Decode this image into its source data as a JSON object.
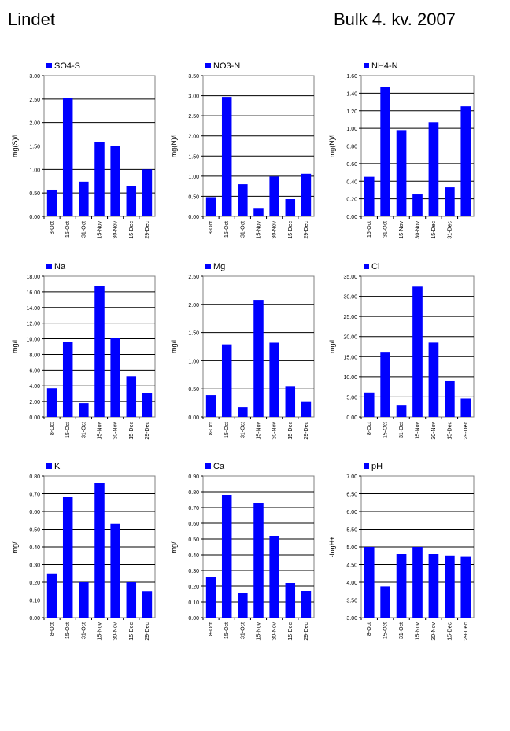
{
  "page": {
    "title_left": "Lindet",
    "title_right": "Bulk  4. kv. 2007"
  },
  "colors": {
    "bar": "#0000FF",
    "grid": "#000000",
    "axis": "#808080"
  },
  "chart_data": [
    {
      "type": "bar",
      "series_name": "SO4-S",
      "ylabel": "mg(S)/l",
      "ylim": [
        0,
        3
      ],
      "yticks": [
        "0.00",
        "0.50",
        "1.00",
        "1.50",
        "2.00",
        "2.50",
        "3.00"
      ],
      "categories": [
        "8-Oct",
        "15-Oct",
        "31-Oct",
        "15-Nov",
        "30-Nov",
        "15-Dec",
        "29-Dec"
      ],
      "values": [
        0.57,
        2.52,
        0.74,
        1.58,
        1.5,
        0.64,
        1.0
      ]
    },
    {
      "type": "bar",
      "series_name": "NO3-N",
      "ylabel": "mg(N)/l",
      "ylim": [
        0,
        3.5
      ],
      "yticks": [
        "0.00",
        "0.50",
        "1.00",
        "1.50",
        "2.00",
        "2.50",
        "3.00",
        "3.50"
      ],
      "categories": [
        "8-Oct",
        "15-Oct",
        "31-Oct",
        "15-Nov",
        "30-Nov",
        "15-Dec",
        "29-Dec"
      ],
      "values": [
        0.48,
        2.97,
        0.8,
        0.21,
        0.99,
        0.43,
        1.06
      ]
    },
    {
      "type": "bar",
      "series_name": "NH4-N",
      "ylabel": "mg(N)/l",
      "ylim": [
        0,
        1.6
      ],
      "yticks": [
        "0.00",
        "0.20",
        "0.40",
        "0.60",
        "0.80",
        "1.00",
        "1.20",
        "1.40",
        "1.60"
      ],
      "categories": [
        "15-Oct",
        "31-Oct",
        "15-Nov",
        "30-Nov",
        "15-Dec",
        "31-Dec",
        ""
      ],
      "values": [
        0.45,
        1.47,
        0.98,
        0.25,
        1.07,
        0.33,
        1.25
      ]
    },
    {
      "type": "bar",
      "series_name": "Na",
      "ylabel": "mg/l",
      "ylim": [
        0,
        18
      ],
      "yticks": [
        "0.00",
        "2.00",
        "4.00",
        "6.00",
        "8.00",
        "10.00",
        "12.00",
        "14.00",
        "16.00",
        "18.00"
      ],
      "categories": [
        "8-Oct",
        "15-Oct",
        "31-Oct",
        "15-Nov",
        "30-Nov",
        "15-Dec",
        "29-Dec"
      ],
      "values": [
        3.7,
        9.6,
        1.8,
        16.7,
        10.1,
        5.2,
        3.1
      ]
    },
    {
      "type": "bar",
      "series_name": "Mg",
      "ylabel": "mg/l",
      "ylim": [
        0,
        2.5
      ],
      "yticks": [
        "0.00",
        "0.50",
        "1.00",
        "1.50",
        "2.00",
        "2.50"
      ],
      "categories": [
        "8-Oct",
        "15-Oct",
        "31-Oct",
        "15-Nov",
        "30-Nov",
        "15-Dec",
        "29-Dec"
      ],
      "values": [
        0.39,
        1.29,
        0.18,
        2.08,
        1.32,
        0.54,
        0.27
      ]
    },
    {
      "type": "bar",
      "series_name": "Cl",
      "ylabel": "mg/l",
      "ylim": [
        0,
        35
      ],
      "yticks": [
        "0.00",
        "5.00",
        "10.00",
        "15.00",
        "20.00",
        "25.00",
        "30.00",
        "35.00"
      ],
      "categories": [
        "8-Oct",
        "15-Oct",
        "31-Oct",
        "15-Nov",
        "30-Nov",
        "15-Dec",
        "29-Dec"
      ],
      "values": [
        6.1,
        16.2,
        2.9,
        32.4,
        18.5,
        9.0,
        4.6
      ]
    },
    {
      "type": "bar",
      "series_name": "K",
      "ylabel": "mg/l",
      "ylim": [
        0,
        0.8
      ],
      "yticks": [
        "0.00",
        "0.10",
        "0.20",
        "0.30",
        "0.40",
        "0.50",
        "0.60",
        "0.70",
        "0.80"
      ],
      "categories": [
        "8-Oct",
        "15-Oct",
        "31-Oct",
        "15-Nov",
        "30-Nov",
        "15-Dec",
        "29-Dec"
      ],
      "values": [
        0.25,
        0.68,
        0.2,
        0.76,
        0.53,
        0.2,
        0.15
      ]
    },
    {
      "type": "bar",
      "series_name": "Ca",
      "ylabel": "mg/l",
      "ylim": [
        0,
        0.9
      ],
      "yticks": [
        "0.00",
        "0.10",
        "0.20",
        "0.30",
        "0.40",
        "0.50",
        "0.60",
        "0.70",
        "0.80",
        "0.90"
      ],
      "categories": [
        "8-Oct",
        "15-Oct",
        "31-Oct",
        "15-Nov",
        "30-Nov",
        "15-Dec",
        "29-Dec"
      ],
      "values": [
        0.26,
        0.78,
        0.16,
        0.73,
        0.52,
        0.22,
        0.17
      ]
    },
    {
      "type": "bar",
      "series_name": "pH",
      "ylabel": "-logH+",
      "ylim": [
        3,
        7
      ],
      "yticks": [
        "3.00",
        "3.50",
        "4.00",
        "4.50",
        "5.00",
        "5.50",
        "6.00",
        "6.50",
        "7.00"
      ],
      "categories": [
        "8-Oct",
        "15-Oct",
        "31-Oct",
        "15-Nov",
        "30-Nov",
        "15-Dec",
        "29-Dec"
      ],
      "values": [
        5.0,
        3.88,
        4.8,
        5.0,
        4.8,
        4.76,
        4.72
      ]
    }
  ]
}
